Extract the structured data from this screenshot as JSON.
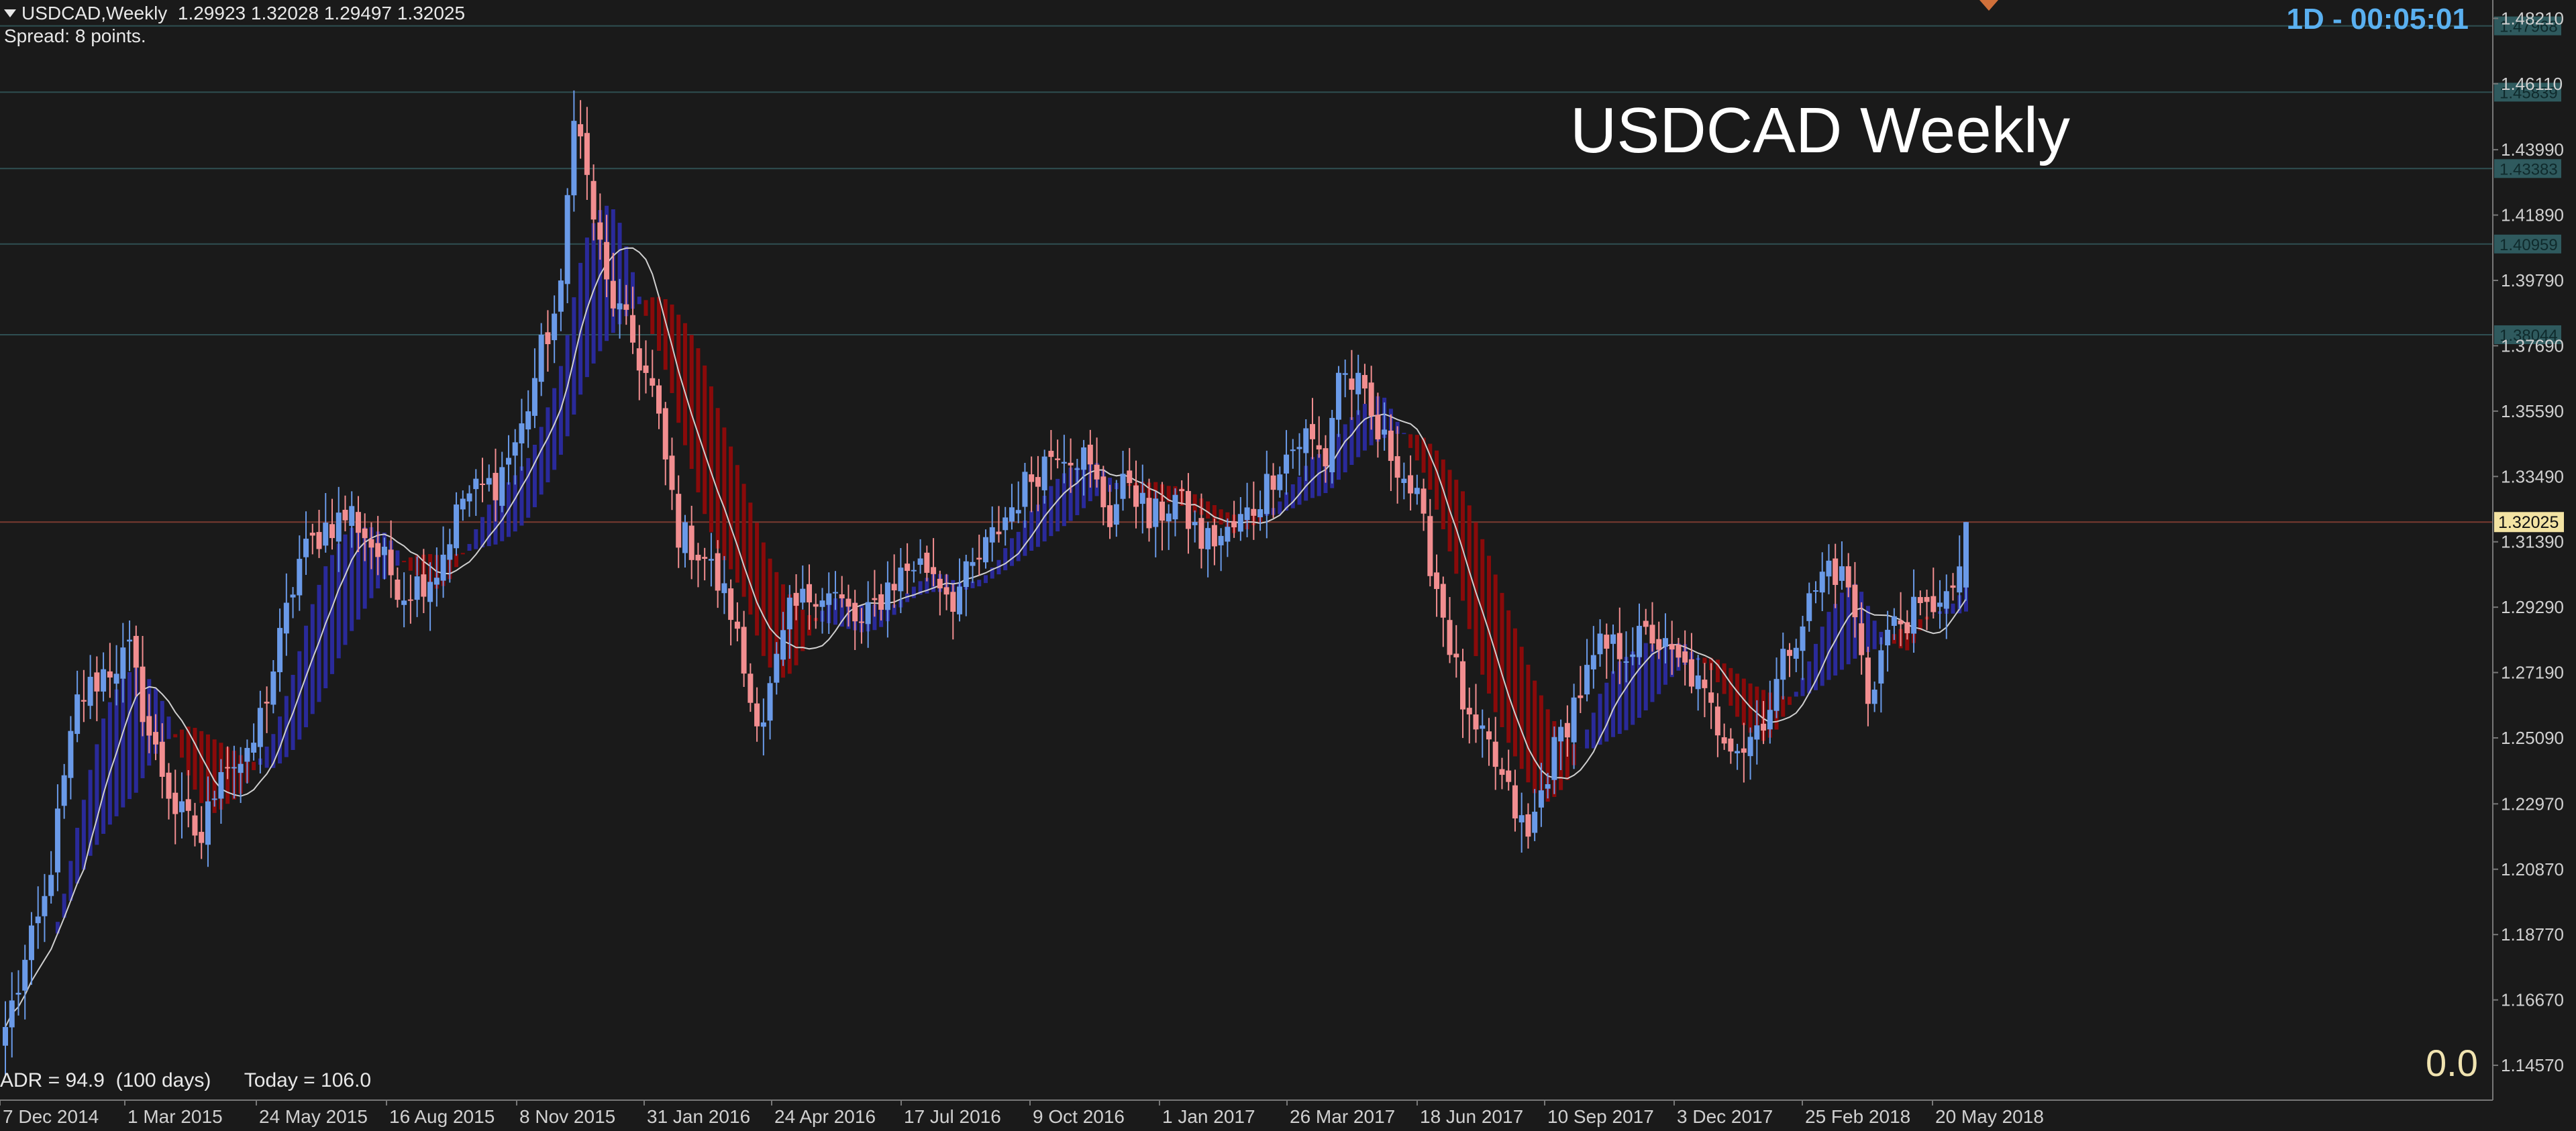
{
  "header": {
    "symbol": "USDCAD,Weekly",
    "ohlc": "1.29923 1.32028 1.29497 1.32025",
    "spread": "Spread: 8 points."
  },
  "timer": "1D - 00:05:01",
  "annotation_title": "USDCAD Weekly",
  "footer": {
    "adr": "ADR = 94.9  (100 days)",
    "today": "Today = 106.0",
    "corner_value": "0.0"
  },
  "colors": {
    "background": "#1a1a1a",
    "bull": "#6a9ae8",
    "bear": "#f28e90",
    "cloud_bull": "#2a2a9a",
    "cloud_bear": "#8a0a0a",
    "ma_line": "#cfcfcf",
    "axis_text": "#d0d0d0",
    "level_line": "#2f4f52",
    "price_line": "#7a3a30",
    "current_price_bg": "#f3e3a3"
  },
  "chart_data": {
    "type": "candlestick",
    "symbol": "USDCAD",
    "timeframe": "Weekly",
    "y_range": [
      1.1345,
      1.488
    ],
    "price_ticks": [
      "1.48210",
      "1.46110",
      "1.43990",
      "1.41890",
      "1.39790",
      "1.37690",
      "1.35590",
      "1.33490",
      "1.31390",
      "1.29290",
      "1.27190",
      "1.25090",
      "1.22970",
      "1.20870",
      "1.18770",
      "1.16670",
      "1.14570"
    ],
    "x_tick_labels": [
      "7 Dec 2014",
      "1 Mar 2015",
      "24 May 2015",
      "16 Aug 2015",
      "8 Nov 2015",
      "31 Jan 2016",
      "24 Apr 2016",
      "17 Jul 2016",
      "9 Oct 2016",
      "1 Jan 2017",
      "26 Mar 2017",
      "18 Jun 2017",
      "10 Sep 2017",
      "3 Dec 2017",
      "25 Feb 2018",
      "20 May 2018"
    ],
    "level_lines": [
      "1.47968",
      "1.45839",
      "1.43383",
      "1.40959",
      "1.38044"
    ],
    "current_price": "1.32025",
    "close_anchors": [
      [
        0,
        1.158
      ],
      [
        6,
        1.198
      ],
      [
        11,
        1.262
      ],
      [
        15,
        1.272
      ],
      [
        19,
        1.278
      ],
      [
        22,
        1.252
      ],
      [
        26,
        1.228
      ],
      [
        30,
        1.218
      ],
      [
        33,
        1.244
      ],
      [
        37,
        1.242
      ],
      [
        41,
        1.273
      ],
      [
        45,
        1.308
      ],
      [
        49,
        1.319
      ],
      [
        53,
        1.323
      ],
      [
        57,
        1.31
      ],
      [
        61,
        1.298
      ],
      [
        66,
        1.305
      ],
      [
        70,
        1.328
      ],
      [
        75,
        1.333
      ],
      [
        79,
        1.35
      ],
      [
        82,
        1.375
      ],
      [
        85,
        1.393
      ],
      [
        87,
        1.455
      ],
      [
        89,
        1.43
      ],
      [
        92,
        1.396
      ],
      [
        96,
        1.378
      ],
      [
        99,
        1.362
      ],
      [
        103,
        1.317
      ],
      [
        107,
        1.309
      ],
      [
        111,
        1.292
      ],
      [
        114,
        1.263
      ],
      [
        116,
        1.258
      ],
      [
        120,
        1.29
      ],
      [
        124,
        1.299
      ],
      [
        127,
        1.296
      ],
      [
        131,
        1.286
      ],
      [
        135,
        1.3
      ],
      [
        139,
        1.307
      ],
      [
        142,
        1.305
      ],
      [
        145,
        1.296
      ],
      [
        149,
        1.308
      ],
      [
        153,
        1.322
      ],
      [
        157,
        1.335
      ],
      [
        161,
        1.345
      ],
      [
        165,
        1.341
      ],
      [
        169,
        1.322
      ],
      [
        172,
        1.335
      ],
      [
        175,
        1.32
      ],
      [
        179,
        1.328
      ],
      [
        183,
        1.314
      ],
      [
        187,
        1.316
      ],
      [
        191,
        1.325
      ],
      [
        195,
        1.34
      ],
      [
        199,
        1.348
      ],
      [
        202,
        1.34
      ],
      [
        204,
        1.369
      ],
      [
        207,
        1.363
      ],
      [
        210,
        1.348
      ],
      [
        213,
        1.34
      ],
      [
        216,
        1.326
      ],
      [
        220,
        1.291
      ],
      [
        224,
        1.253
      ],
      [
        227,
        1.247
      ],
      [
        230,
        1.232
      ],
      [
        233,
        1.218
      ],
      [
        236,
        1.241
      ],
      [
        240,
        1.262
      ],
      [
        244,
        1.279
      ],
      [
        248,
        1.28
      ],
      [
        252,
        1.284
      ],
      [
        255,
        1.276
      ],
      [
        258,
        1.271
      ],
      [
        262,
        1.255
      ],
      [
        266,
        1.248
      ],
      [
        270,
        1.262
      ],
      [
        273,
        1.281
      ],
      [
        276,
        1.294
      ],
      [
        279,
        1.307
      ],
      [
        282,
        1.3
      ],
      [
        285,
        1.264
      ],
      [
        288,
        1.285
      ],
      [
        291,
        1.29
      ],
      [
        294,
        1.291
      ],
      [
        296,
        1.298
      ],
      [
        298,
        1.294
      ],
      [
        300,
        1.32025
      ]
    ]
  }
}
